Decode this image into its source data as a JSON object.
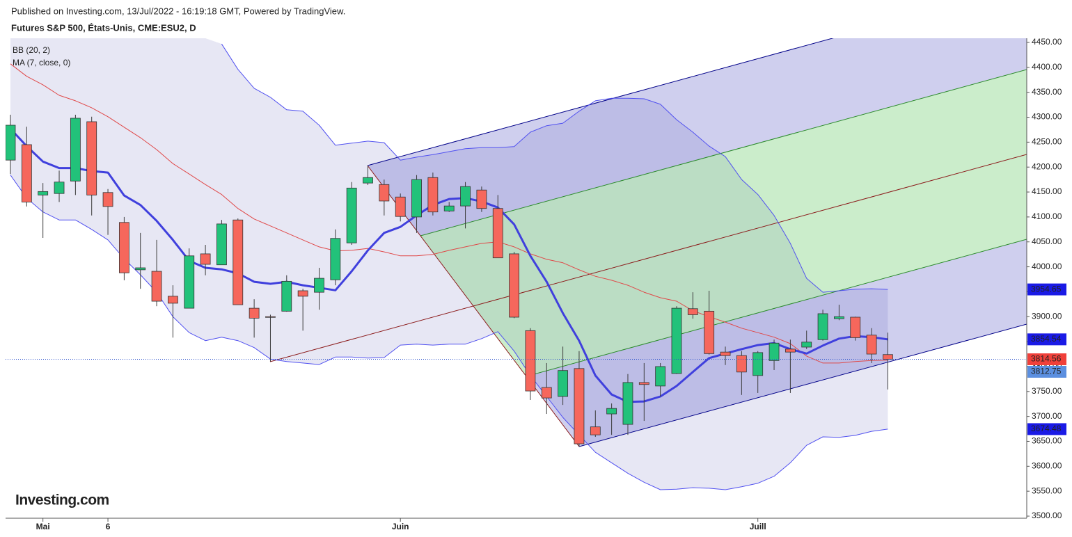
{
  "header": {
    "published": "Published on Investing.com, 13/Jul/2022 - 16:19:18 GMT, Powered by TradingView.",
    "symbol": "Futures S&P 500, États-Unis, CME:ESU2, D"
  },
  "logo": "Investing.com",
  "chart_data": {
    "type": "candlestick",
    "open": [
      4214,
      4245,
      4144,
      4147,
      4172,
      4291,
      4149,
      4089,
      3994,
      3991,
      3941,
      3917,
      4026,
      4004,
      4094,
      3917,
      3900,
      3911,
      3952,
      3949,
      3974,
      4048,
      4168,
      4165,
      4140,
      4100,
      4179,
      4112,
      4122,
      4154,
      4117,
      4026,
      3872,
      3758,
      3740,
      3796,
      3679,
      3705,
      3684,
      3768,
      3761,
      3786,
      3916,
      3911,
      3829,
      3822,
      3782,
      3812,
      3835,
      3839,
      3854,
      3896,
      3899,
      3863,
      3824
    ],
    "high": [
      4305,
      4281,
      4168,
      4193,
      4305,
      4301,
      4156,
      4100,
      4068,
      4054,
      3963,
      4037,
      4044,
      4094,
      4097,
      3935,
      3904,
      3983,
      3956,
      3998,
      4075,
      4170,
      4203,
      4175,
      4147,
      4184,
      4189,
      4130,
      4170,
      4161,
      4144,
      4030,
      3877,
      3807,
      3840,
      3831,
      3712,
      3726,
      3785,
      3807,
      3807,
      3921,
      3949,
      3952,
      3840,
      3831,
      3831,
      3854,
      3854,
      3872,
      3914,
      3924,
      3900,
      3877,
      3868
    ],
    "low": [
      4186,
      4121,
      4058,
      4130,
      4144,
      4103,
      4064,
      3973,
      3956,
      3921,
      3858,
      3917,
      3983,
      4004,
      3924,
      3858,
      3810,
      3910,
      3872,
      3914,
      3963,
      4044,
      4164,
      4103,
      4091,
      4068,
      4103,
      4110,
      4077,
      4110,
      4018,
      3897,
      3733,
      3705,
      3723,
      3639,
      3659,
      3663,
      3663,
      3691,
      3740,
      3785,
      3896,
      3824,
      3803,
      3743,
      3747,
      3793,
      3747,
      3835,
      3852,
      3893,
      3852,
      3807,
      3754
    ],
    "close": [
      4284,
      4130,
      4151,
      4170,
      4298,
      4144,
      4121,
      3988,
      3998,
      3931,
      3927,
      4022,
      4005,
      4086,
      3924,
      3897,
      3899,
      3971,
      3941,
      3977,
      4057,
      4158,
      4179,
      4132,
      4101,
      4175,
      4110,
      4122,
      4161,
      4117,
      4018,
      3899,
      3751,
      3737,
      3792,
      3645,
      3663,
      3716,
      3768,
      3764,
      3800,
      3917,
      3904,
      3826,
      3822,
      3789,
      3828,
      3847,
      3829,
      3849,
      3906,
      3900,
      3858,
      3825,
      3814.56
    ],
    "up_color": "#22c27a",
    "down_color": "#f6675c",
    "close_label_color": "#f0403a",
    "bb": {
      "name": "BB (20, 2)",
      "band_color": "#5050f0",
      "basis_color": "#e04848",
      "fill": "rgba(110,110,190,0.17)",
      "label_color": "#1a1ae6",
      "basis_label_color": "#5b8fe0",
      "upper": [
        null,
        null,
        null,
        null,
        null,
        null,
        null,
        null,
        null,
        null,
        null,
        null,
        null,
        4447,
        4396,
        4358,
        4340,
        4315,
        4312,
        4284,
        4244,
        4248,
        4252,
        4249,
        4214,
        4220,
        4225,
        4231,
        4237,
        4239,
        4239,
        4241,
        4270,
        4283,
        4288,
        4312,
        4333,
        4338,
        4338,
        4337,
        4326,
        4295,
        4270,
        4242,
        4221,
        4175,
        4145,
        4103,
        4047,
        3977,
        3949,
        3952,
        3955,
        3956,
        3954.65
      ],
      "basis": [
        4407,
        4382,
        4365,
        4344,
        4333,
        4319,
        4301,
        4280,
        4259,
        4235,
        4207,
        4186,
        4165,
        4145,
        4117,
        4096,
        4082,
        4068,
        4054,
        4040,
        4032,
        4033,
        4037,
        4030,
        4022,
        4022,
        4025,
        4033,
        4040,
        4047,
        4050,
        4040,
        4026,
        4015,
        4008,
        3994,
        3981,
        3973,
        3963,
        3949,
        3938,
        3931,
        3912,
        3900,
        3889,
        3877,
        3868,
        3859,
        3846,
        3821,
        3807,
        3807,
        3810,
        3812,
        3812.75
      ],
      "lower": [
        4184,
        4138,
        4110,
        4094,
        4094,
        4075,
        4054,
        4016,
        3984,
        3949,
        3900,
        3868,
        3852,
        3859,
        3852,
        3838,
        3815,
        3810,
        3807,
        3804,
        3819,
        3819,
        3817,
        3818,
        3843,
        3845,
        3843,
        3845,
        3845,
        3856,
        3870,
        3831,
        3782,
        3740,
        3698,
        3663,
        3628,
        3607,
        3586,
        3568,
        3553,
        3554,
        3557,
        3556,
        3553,
        3559,
        3566,
        3580,
        3607,
        3642,
        3659,
        3658,
        3662,
        3670,
        3674.48
      ]
    },
    "ma": {
      "name": "MA (7, close, 0)",
      "color": "#4040dd",
      "label_color": "#1a1ae6",
      "values": [
        4277,
        4242,
        4211,
        4198,
        4198,
        4192,
        4189,
        4143,
        4124,
        4092,
        4054,
        4012,
        3998,
        3995,
        3987,
        3970,
        3966,
        3970,
        3963,
        3958,
        3953,
        3991,
        4033,
        4068,
        4080,
        4103,
        4124,
        4136,
        4138,
        4131,
        4119,
        4085,
        4022,
        3970,
        3907,
        3852,
        3782,
        3744,
        3729,
        3730,
        3740,
        3761,
        3789,
        3817,
        3826,
        3835,
        3843,
        3847,
        3835,
        3826,
        3842,
        3856,
        3861,
        3859,
        3854.54
      ]
    },
    "xlim": [
      -0.3,
      62.55
    ],
    "xticks": [
      {
        "value": 2,
        "label": "Mai"
      },
      6,
      {
        "value": 24,
        "label": "Juin"
      },
      {
        "value": 46,
        "label": "Juill"
      }
    ],
    "ylim": [
      3500,
      4450
    ],
    "yticks": [
      {
        "value": 4450,
        "label": "4450.00"
      },
      {
        "value": 4400,
        "label": "4400.00"
      },
      {
        "value": 4350,
        "label": "4350.00"
      },
      {
        "value": 4300,
        "label": "4300.00"
      },
      {
        "value": 4250,
        "label": "4250.00"
      },
      {
        "value": 4200,
        "label": "4200.00"
      },
      {
        "value": 4150,
        "label": "4150.00"
      },
      {
        "value": 4100,
        "label": "4100.00"
      },
      {
        "value": 4050,
        "label": "4050.00"
      },
      {
        "value": 4000,
        "label": "4000.00"
      },
      {
        "value": 3950,
        "label": "3950.00"
      },
      {
        "value": 3900,
        "label": "3900.00"
      },
      {
        "value": 3850,
        "label": "3850.00"
      },
      {
        "value": 3800,
        "label": "3800.00"
      },
      {
        "value": 3750,
        "label": "3750.00"
      },
      {
        "value": 3700,
        "label": "3700.00"
      },
      {
        "value": 3650,
        "label": "3650.00"
      },
      {
        "value": 3600,
        "label": "3600.00"
      },
      {
        "value": 3550,
        "label": "3550.00"
      },
      {
        "value": 3500,
        "label": "3500.00"
      }
    ]
  }
}
